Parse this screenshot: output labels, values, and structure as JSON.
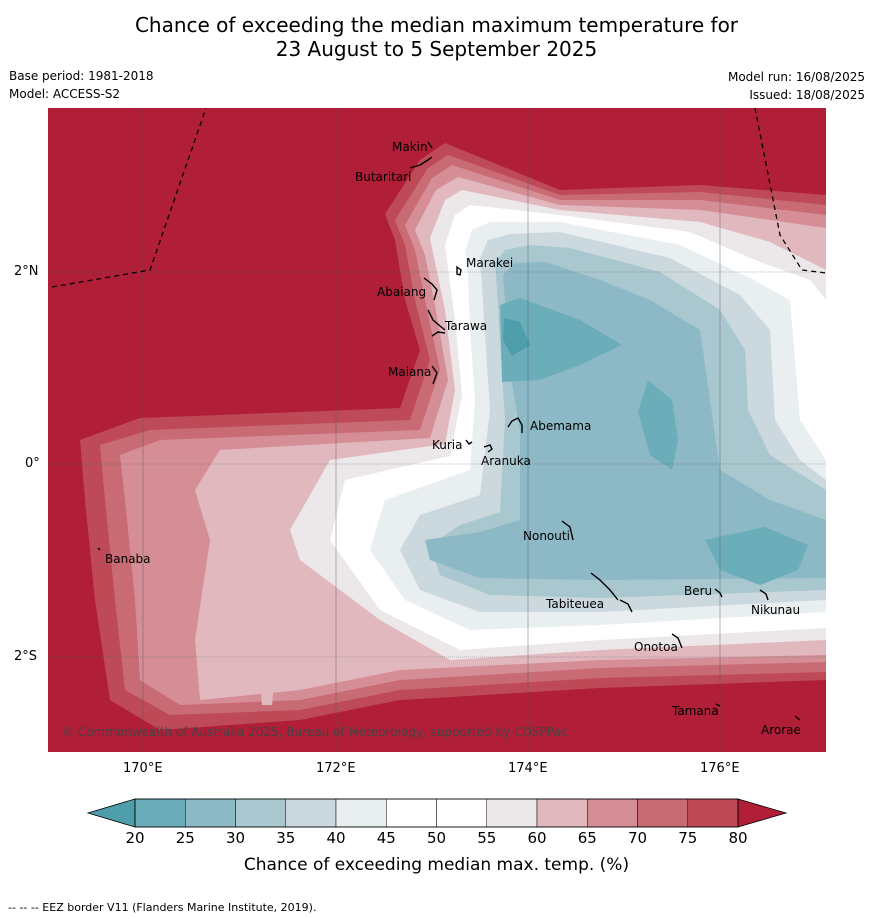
{
  "title_line1": "Chance of exceeding the median maximum temperature for",
  "title_line2": "23 August to 5 September 2025",
  "base_period": "Base period: 1981-2018",
  "model": "Model: ACCESS-S2",
  "model_run": "Model run: 16/08/2025",
  "issued": "Issued: 18/08/2025",
  "copyright": "© Commonwealth of Australia 2025, Bureau of Meteorology, supported by COSPPac",
  "lat_labels": [
    "2°N",
    "0°",
    "2°S"
  ],
  "lon_labels": [
    "170°E",
    "172°E",
    "174°E",
    "176°E"
  ],
  "places": [
    "Makin",
    "Butaritari",
    "Marakei",
    "Abaiang",
    "Tarawa",
    "Maiana",
    "Abemama",
    "Kuria",
    "Aranuka",
    "Banaba",
    "Nonouti",
    "Beru",
    "Nikunau",
    "Tabiteuea",
    "Onotoa",
    "Tamana",
    "Arorae"
  ],
  "colorbar": {
    "ticks": [
      "20",
      "25",
      "30",
      "35",
      "40",
      "45",
      "50",
      "55",
      "60",
      "65",
      "70",
      "75",
      "80"
    ],
    "colors": [
      "#6badb9",
      "#8cb9c5",
      "#a8c7ce",
      "#cbd9df",
      "#e9eef0",
      "#ffffff",
      "#ffffff",
      "#ece8ea",
      "#e2b8bf",
      "#d68e96",
      "#c96b75",
      "#be4a58"
    ],
    "under_color": "#4d9eaa",
    "over_color": "#b01e38",
    "label": "Chance of exceeding median max. temp. (%)"
  },
  "footnote": "--  --  -- EEZ border V11 (Flanders Marine Institute, 2019)."
}
